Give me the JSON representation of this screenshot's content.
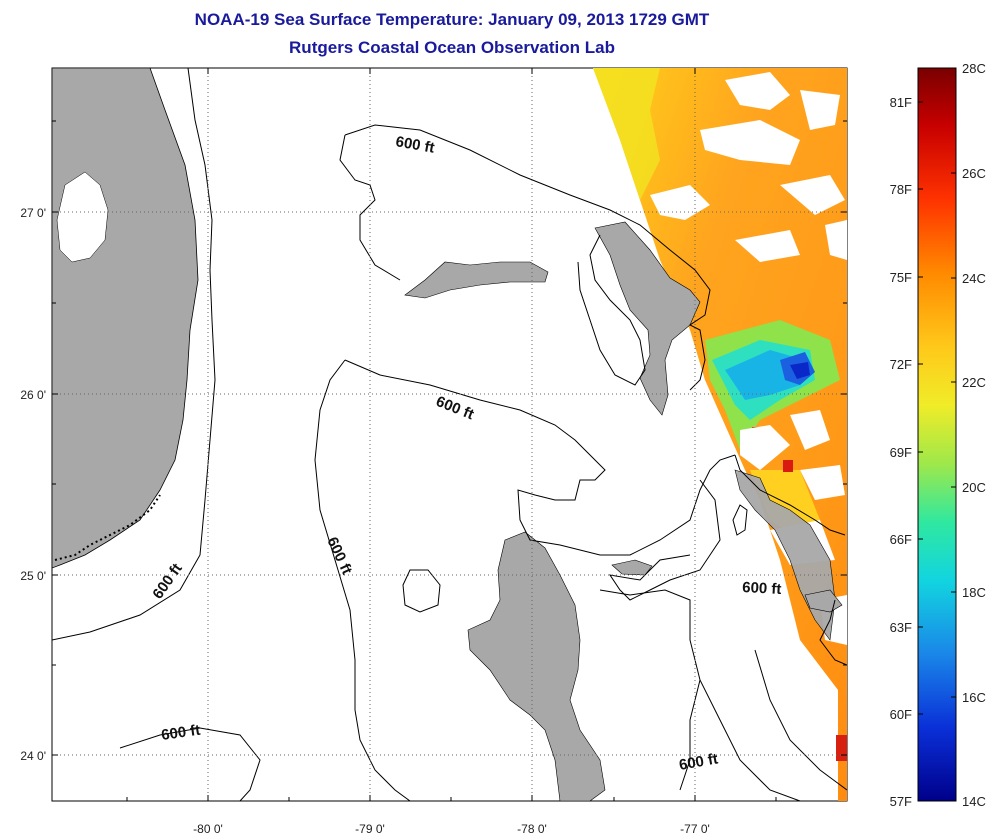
{
  "title": {
    "line1": "NOAA-19 Sea Surface Temperature:  January 09, 2013 1729 GMT",
    "line2": "Rutgers Coastal Ocean Observation Lab"
  },
  "map": {
    "x_ticks": [
      {
        "lon": -80,
        "label": "-80 0'"
      },
      {
        "lon": -79,
        "label": "-79 0'"
      },
      {
        "lon": -78,
        "label": "-78 0'"
      },
      {
        "lon": -77,
        "label": "-77 0'"
      }
    ],
    "y_ticks": [
      {
        "lat": 27,
        "label": "27 0'"
      },
      {
        "lat": 26,
        "label": "26 0'"
      },
      {
        "lat": 25,
        "label": "25 0'"
      },
      {
        "lat": 24,
        "label": "24 0'"
      }
    ],
    "contour_labels": [
      "600 ft",
      "600 ft",
      "600 ft",
      "600 ft",
      "600 ft",
      "600 ft",
      "600 ft"
    ],
    "colors": {
      "land": "#a8a8a8",
      "contour": "#000000",
      "grid": "#555555"
    }
  },
  "colorbar": {
    "fahrenheit_labels": [
      "81F",
      "78F",
      "75F",
      "72F",
      "69F",
      "66F",
      "63F",
      "60F",
      "57F"
    ],
    "celsius_labels": [
      "28C",
      "26C",
      "24C",
      "22C",
      "20C",
      "18C",
      "16C",
      "14C"
    ],
    "colors": [
      "#7a0000",
      "#d40000",
      "#ff4a00",
      "#ff9a10",
      "#ffd21a",
      "#d9e82a",
      "#7ae64a",
      "#1ee6b0",
      "#19c8e6",
      "#1a78e6",
      "#0a28d6",
      "#00008c"
    ]
  }
}
